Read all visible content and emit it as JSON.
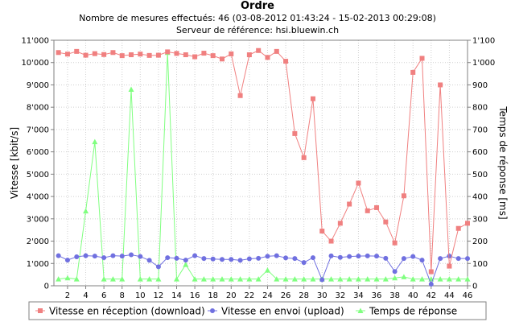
{
  "chart_data": {
    "type": "line",
    "title": "Ordre",
    "subtitle_lines": [
      "Nombre de mesures effectués: 46 (03-08-2012 01:43:24 - 15-02-2013 00:29:08)",
      "Serveur de référence: hsi.bluewin.ch"
    ],
    "ylabel_left": "Vitesse [kbit/s]",
    "ylabel_right": "Temps de réponse [ms]",
    "xlim": [
      0.5,
      46
    ],
    "ylim_left": [
      0,
      11000
    ],
    "ylim_right": [
      0,
      1100
    ],
    "x_ticks": [
      2,
      4,
      6,
      8,
      10,
      12,
      14,
      16,
      18,
      20,
      22,
      24,
      26,
      28,
      30,
      32,
      34,
      36,
      38,
      40,
      42,
      44,
      46
    ],
    "x_tick_labels": [
      "2",
      "4",
      "6",
      "8",
      "10",
      "12",
      "14",
      "16",
      "18",
      "20",
      "22",
      "24",
      "26",
      "28",
      "30",
      "32",
      "34",
      "36",
      "38",
      "40",
      "42",
      "44",
      "46"
    ],
    "y_left_ticks": [
      0,
      1000,
      2000,
      3000,
      4000,
      5000,
      6000,
      7000,
      8000,
      9000,
      10000,
      11000
    ],
    "y_left_tick_labels": [
      "0",
      "1'000",
      "2'000",
      "3'000",
      "4'000",
      "5'000",
      "6'000",
      "7'000",
      "8'000",
      "9'000",
      "10'000",
      "11'000"
    ],
    "y_right_ticks": [
      0,
      100,
      200,
      300,
      400,
      500,
      600,
      700,
      800,
      900,
      1000,
      1100
    ],
    "y_right_tick_labels": [
      "0",
      "100",
      "200",
      "300",
      "400",
      "500",
      "600",
      "700",
      "800",
      "900",
      "1'000",
      "1'100"
    ],
    "grid": true,
    "legend_position": "bottom",
    "x": [
      1,
      2,
      3,
      4,
      5,
      6,
      7,
      8,
      9,
      10,
      11,
      12,
      13,
      14,
      15,
      16,
      17,
      18,
      19,
      20,
      21,
      22,
      23,
      24,
      25,
      26,
      27,
      28,
      29,
      30,
      31,
      32,
      33,
      34,
      35,
      36,
      37,
      38,
      39,
      40,
      41,
      42,
      43,
      44,
      45,
      46
    ],
    "series": [
      {
        "name": "Vitesse en réception (download)",
        "axis": "left",
        "color": "#f08080",
        "marker": "square",
        "values": [
          10450,
          10380,
          10500,
          10330,
          10400,
          10360,
          10450,
          10310,
          10350,
          10380,
          10320,
          10330,
          10480,
          10410,
          10350,
          10260,
          10420,
          10310,
          10160,
          10390,
          8520,
          10350,
          10540,
          10230,
          10500,
          10060,
          6820,
          5740,
          8380,
          2450,
          2000,
          2800,
          3660,
          4600,
          3360,
          3500,
          2860,
          1920,
          4030,
          9560,
          10190,
          630,
          9000,
          880,
          2570,
          2800
        ]
      },
      {
        "name": "Vitesse en envoi (upload)",
        "axis": "left",
        "color": "#7070e0",
        "marker": "circle",
        "values": [
          1350,
          1150,
          1300,
          1350,
          1330,
          1260,
          1350,
          1330,
          1390,
          1310,
          1140,
          850,
          1260,
          1230,
          1150,
          1350,
          1220,
          1200,
          1180,
          1180,
          1140,
          1210,
          1230,
          1320,
          1350,
          1250,
          1220,
          1040,
          1260,
          270,
          1340,
          1270,
          1310,
          1330,
          1340,
          1330,
          1230,
          640,
          1220,
          1310,
          1150,
          70,
          1220,
          1330,
          1220,
          1220
        ]
      },
      {
        "name": "Temps de réponse",
        "axis": "right",
        "color": "#80ff80",
        "marker": "triangle",
        "values": [
          30,
          35,
          30,
          335,
          645,
          30,
          30,
          30,
          880,
          30,
          30,
          30,
          1045,
          30,
          95,
          30,
          30,
          30,
          30,
          30,
          30,
          30,
          30,
          70,
          30,
          30,
          30,
          30,
          30,
          30,
          30,
          30,
          30,
          30,
          30,
          30,
          30,
          35,
          40,
          30,
          30,
          30,
          30,
          30,
          30,
          30
        ]
      }
    ]
  }
}
